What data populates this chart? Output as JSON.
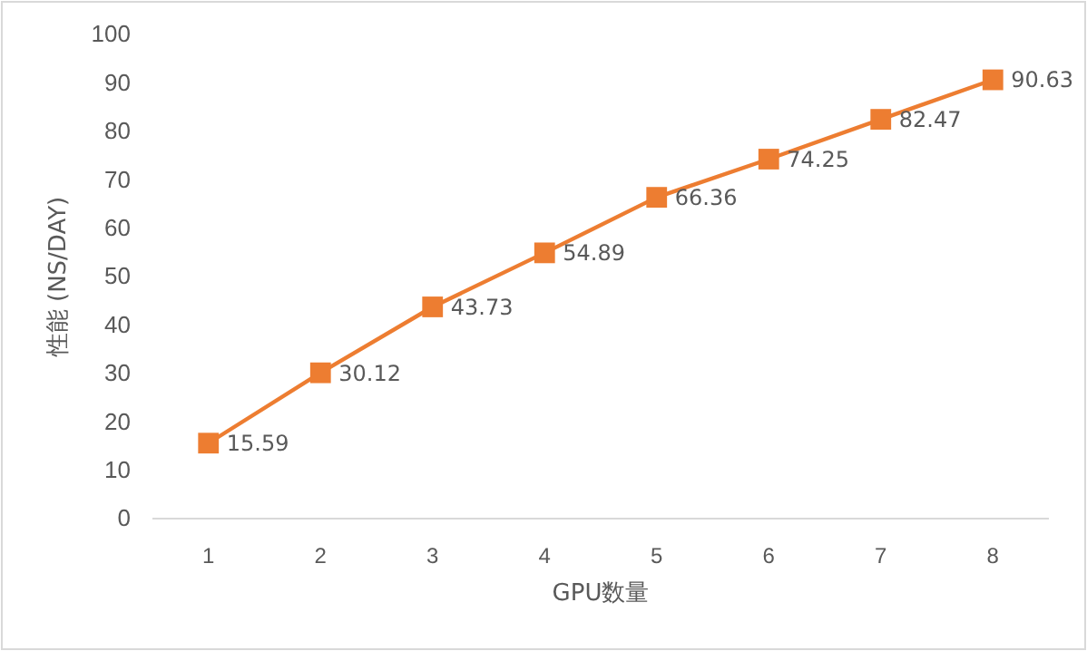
{
  "chart_data": {
    "type": "line",
    "xlabel": "GPU数量",
    "ylabel": "性能 (NS/DAY)",
    "categories": [
      "1",
      "2",
      "3",
      "4",
      "5",
      "6",
      "7",
      "8"
    ],
    "series": [
      {
        "color": "#ed7d31",
        "values": [
          15.59,
          30.12,
          43.73,
          54.89,
          66.36,
          74.25,
          82.47,
          90.63
        ]
      }
    ],
    "ylim": [
      0,
      100
    ],
    "yticks": [
      0,
      10,
      20,
      30,
      40,
      50,
      60,
      70,
      80,
      90,
      100
    ],
    "marker": "square",
    "data_labels": true
  }
}
